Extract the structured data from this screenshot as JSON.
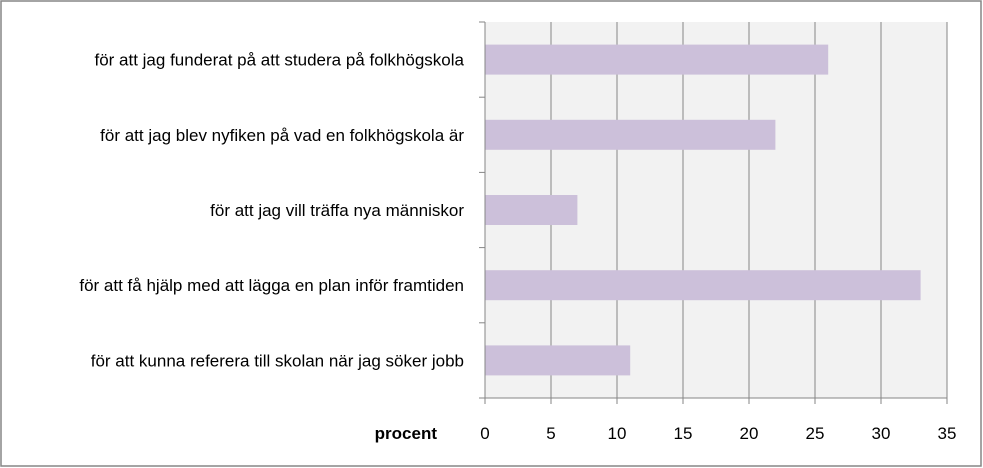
{
  "chart_data": {
    "type": "bar",
    "orientation": "horizontal",
    "categories": [
      "för att jag funderat på att studera på folkhögskola",
      "för att jag blev nyfiken på vad en folkhögskola är",
      "för att jag vill träffa nya människor",
      "för att få hjälp med att lägga en plan inför framtiden",
      "för att kunna referera till skolan när jag söker jobb"
    ],
    "values": [
      26,
      22,
      7,
      33,
      11
    ],
    "title": "",
    "xlabel": "procent",
    "ylabel": "",
    "xlim": [
      0,
      35
    ],
    "xticks": [
      0,
      5,
      10,
      15,
      20,
      25,
      30,
      35
    ],
    "grid": "vertical",
    "legend": "none",
    "colors": {
      "bar": "#ccc0da",
      "plot_background": "#f2f2f2",
      "gridline": "#868686",
      "axis": "#868686",
      "frame": "#868686"
    }
  }
}
